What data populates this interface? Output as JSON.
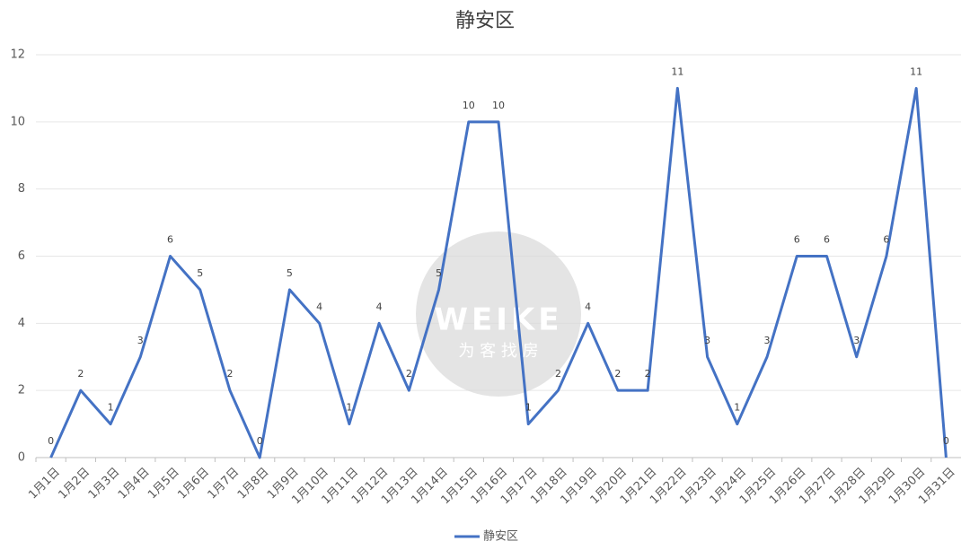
{
  "chart_data": {
    "type": "line",
    "title": "静安区",
    "categories": [
      "1月1日",
      "1月2日",
      "1月3日",
      "1月4日",
      "1月5日",
      "1月6日",
      "1月7日",
      "1月8日",
      "1月9日",
      "1月10日",
      "1月11日",
      "1月12日",
      "1月13日",
      "1月14日",
      "1月15日",
      "1月16日",
      "1月17日",
      "1月18日",
      "1月19日",
      "1月20日",
      "1月21日",
      "1月22日",
      "1月23日",
      "1月24日",
      "1月25日",
      "1月26日",
      "1月27日",
      "1月28日",
      "1月29日",
      "1月30日",
      "1月31日"
    ],
    "series": [
      {
        "name": "静安区",
        "color": "#4472c4",
        "values": [
          0,
          2,
          1,
          3,
          6,
          5,
          2,
          0,
          5,
          4,
          1,
          4,
          2,
          5,
          10,
          10,
          1,
          2,
          4,
          2,
          2,
          11,
          3,
          1,
          3,
          6,
          6,
          3,
          6,
          11,
          0
        ]
      }
    ],
    "ylim": [
      0,
      12
    ],
    "yticks": [
      0,
      2,
      4,
      6,
      8,
      10,
      12
    ],
    "grid": true,
    "legend": "bottom",
    "watermark": {
      "text": "WEIKE",
      "subtext": "为 客 找 房"
    }
  }
}
